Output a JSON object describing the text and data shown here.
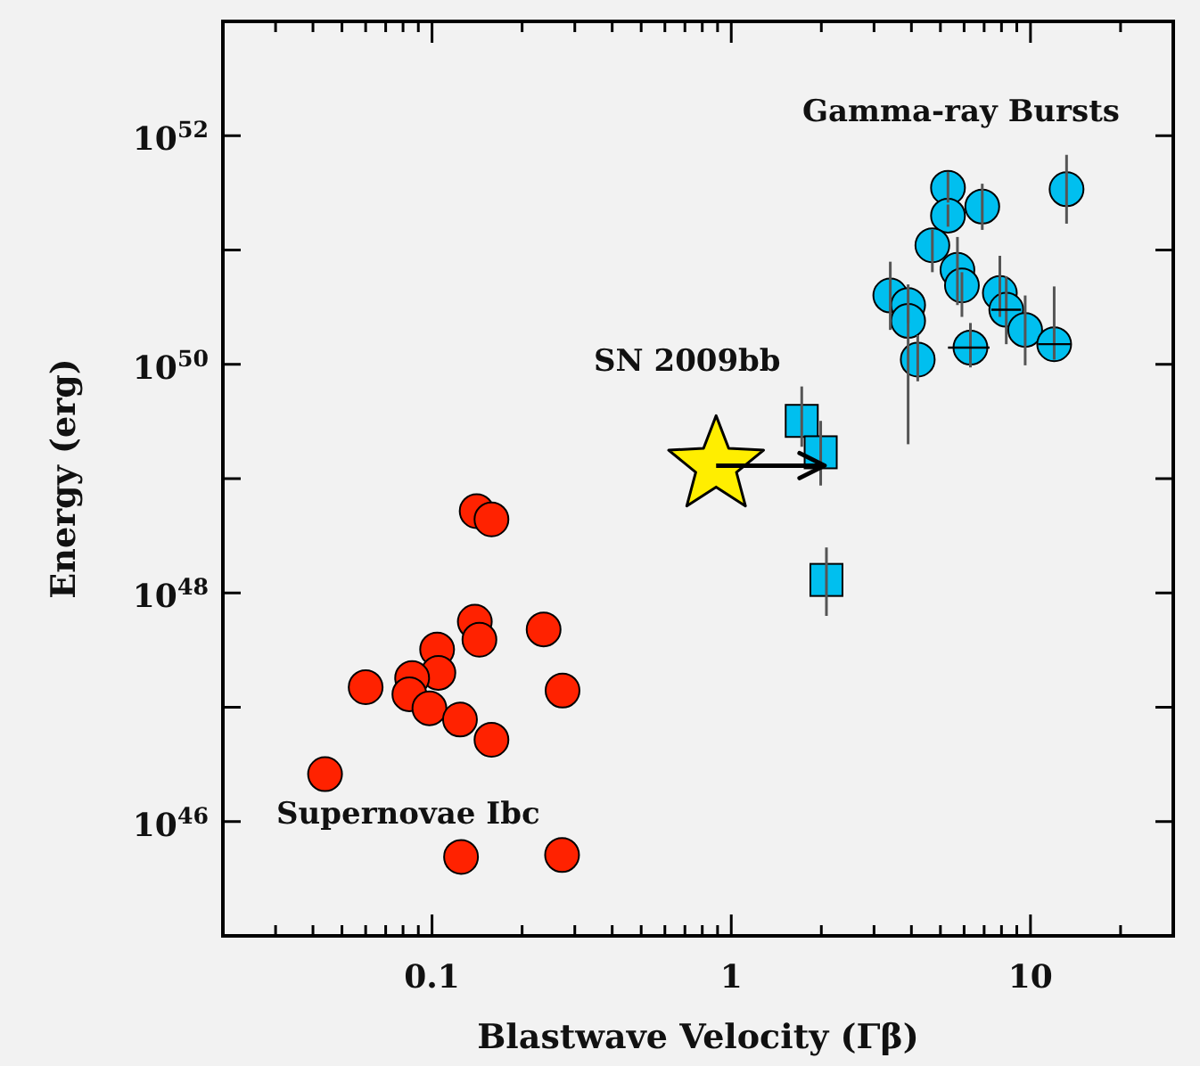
{
  "chart_data": {
    "type": "scatter",
    "xlabel": "Blastwave Velocity (Γβ)",
    "ylabel": "Energy (erg)",
    "log": "xy",
    "xlim": [
      0.02,
      30
    ],
    "ylim": [
      1e+45,
      1e+53
    ],
    "xticks": [
      {
        "value": 0.02,
        "label": null
      },
      {
        "value": 0.03,
        "label": null
      },
      {
        "value": 0.04,
        "label": null
      },
      {
        "value": 0.05,
        "label": null
      },
      {
        "value": 0.06,
        "label": null
      },
      {
        "value": 0.07,
        "label": null
      },
      {
        "value": 0.08,
        "label": null
      },
      {
        "value": 0.09,
        "label": null
      },
      0.1,
      {
        "value": 0.2,
        "label": null
      },
      {
        "value": 0.3,
        "label": null
      },
      {
        "value": 0.4,
        "label": null
      },
      {
        "value": 0.5,
        "label": null
      },
      {
        "value": 0.6,
        "label": null
      },
      {
        "value": 0.7,
        "label": null
      },
      {
        "value": 0.8,
        "label": null
      },
      {
        "value": 0.9,
        "label": null
      },
      1,
      {
        "value": 2,
        "label": null
      },
      {
        "value": 3,
        "label": null
      },
      {
        "value": 4,
        "label": null
      },
      {
        "value": 5,
        "label": null
      },
      {
        "value": 6,
        "label": null
      },
      {
        "value": 7,
        "label": null
      },
      {
        "value": 8,
        "label": null
      },
      {
        "value": 9,
        "label": null
      },
      10,
      {
        "value": 20,
        "label": null
      },
      {
        "value": 30,
        "label": null
      }
    ],
    "yticks": [
      {
        "value": 1e+46,
        "label": "10$^{46}$"
      },
      {
        "value": 1e+47,
        "label": null
      },
      {
        "value": 1e+48,
        "label": "10$^{48}$"
      },
      {
        "value": 1e+49,
        "label": null
      },
      {
        "value": 1e+50,
        "label": "10$^{50}$"
      },
      {
        "value": 1e+51,
        "label": null
      },
      {
        "value": 1e+52,
        "label": "10$^{52}$"
      }
    ],
    "series": [
      {
        "name": "Gamma-ray Bursts",
        "marker": "circle",
        "color": "#00bfef",
        "x": [
          5.3,
          5.3,
          6.9,
          13.2,
          4.7,
          5.7,
          5.9,
          3.4,
          3.9,
          3.9,
          4.2,
          6.3,
          7.9,
          8.3,
          9.6,
          12.0
        ],
        "values": [
          3.5e+51,
          2e+51,
          2.4e+51,
          3.4e+51,
          1.1e+51,
          6.7e+50,
          4.9e+50,
          4e+50,
          3.3e+50,
          2.4e+50,
          1.1e+50,
          1.4e+50,
          4.2e+50,
          3e+50,
          2e+50,
          1.5e+50
        ],
        "errors": [
          [
            2.6e+51,
            4.8e+51
          ],
          [
            1.6e+51,
            2.5e+51
          ],
          [
            1.5e+51,
            3.8e+51
          ],
          [
            1.7e+51,
            6.8e+51
          ],
          [
            6.4e+50,
            1.5e+51
          ],
          [
            3.3e+50,
            1.3e+51
          ],
          [
            2.6e+50,
            6.4e+50
          ],
          [
            2e+50,
            7.9e+50
          ],
          [
            2.3e+50,
            5e+50
          ],
          [
            2e+49,
            3.3e+50
          ],
          [
            7.1e+49,
            1.8e+50
          ],
          [
            9.4e+49,
            2.3e+50
          ],
          [
            2.6e+50,
            8.9e+50
          ],
          [
            1.5e+50,
            5.9e+50
          ],
          [
            9.8e+49,
            4e+50
          ],
          [
            1.1e+50,
            4.8e+50
          ]
        ],
        "xerrors": [
          null,
          null,
          null,
          null,
          null,
          null,
          null,
          null,
          null,
          null,
          null,
          [
            5.3,
            7.3
          ],
          null,
          [
            7.4,
            9.3
          ],
          null,
          [
            10.6,
            13.7
          ]
        ]
      },
      {
        "marker": "square",
        "color": "#00bfef",
        "x": [
          1.72,
          1.99,
          2.08
        ],
        "values": [
          3.2e+49,
          1.7e+49,
          1.3e+48
        ],
        "errors": [
          [
            1.9e+49,
            6.4e+49
          ],
          [
            8.7e+48,
            3.2e+49
          ],
          [
            6.3e+47,
            2.5e+48
          ]
        ]
      },
      {
        "name": "SN 2009bb",
        "marker": "star",
        "color": "#ffee00",
        "x": [
          0.89
        ],
        "values": [
          1.3e+49
        ],
        "xerrors": [
          [
            0.89,
            2.05
          ]
        ]
      },
      {
        "name": "Supernovae Ibc",
        "marker": "circle",
        "color": "#ff2200",
        "x": [
          0.141,
          0.158,
          0.139,
          0.144,
          0.236,
          0.104,
          0.105,
          0.06,
          0.0858,
          0.084,
          0.273,
          0.098,
          0.124,
          0.158,
          0.0439,
          0.125,
          0.272
        ],
        "values": [
          5.2e+48,
          4.4e+48,
          5.6e+47,
          3.9e+47,
          4.8e+47,
          3.2e+47,
          2e+47,
          1.5e+47,
          1.8e+47,
          1.3e+47,
          1.4e+47,
          9.8e+46,
          7.8e+46,
          5.2e+46,
          2.6e+46,
          4.9e+45,
          5.1e+45
        ]
      }
    ]
  }
}
